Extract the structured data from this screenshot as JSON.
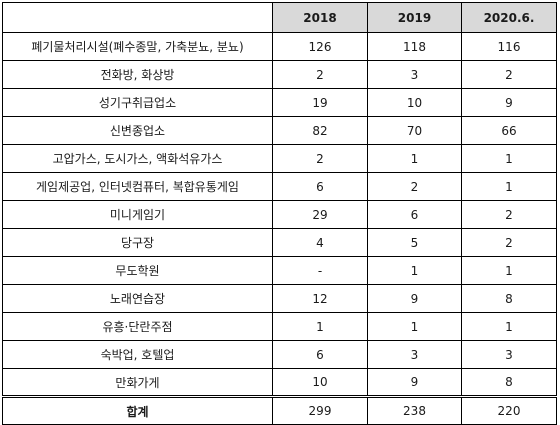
{
  "columns": [
    "",
    "2018",
    "2019",
    "2020.6."
  ],
  "rows": [
    {
      "label": "폐기물처리시설(폐수종말, 가축분뇨, 분뇨)",
      "values": [
        "126",
        "118",
        "116"
      ]
    },
    {
      "label": "전화방, 화상방",
      "values": [
        "2",
        "3",
        "2"
      ]
    },
    {
      "label": "성기구취급업소",
      "values": [
        "19",
        "10",
        "9"
      ]
    },
    {
      "label": "신변종업소",
      "values": [
        "82",
        "70",
        "66"
      ]
    },
    {
      "label": "고압가스, 도시가스, 액화석유가스",
      "values": [
        "2",
        "1",
        "1"
      ]
    },
    {
      "label": "게임제공업, 인터넷컴퓨터, 복합유통게임",
      "values": [
        "6",
        "2",
        "1"
      ]
    },
    {
      "label": "미니게임기",
      "values": [
        "29",
        "6",
        "2"
      ]
    },
    {
      "label": "당구장",
      "values": [
        "4",
        "5",
        "2"
      ]
    },
    {
      "label": "무도학원",
      "values": [
        "-",
        "1",
        "1"
      ]
    },
    {
      "label": "노래연습장",
      "values": [
        "12",
        "9",
        "8"
      ]
    },
    {
      "label": "유흥·단란주점",
      "values": [
        "1",
        "1",
        "1"
      ]
    },
    {
      "label": "숙박업, 호텔업",
      "values": [
        "6",
        "3",
        "3"
      ]
    },
    {
      "label": "만화가게",
      "values": [
        "10",
        "9",
        "8"
      ]
    }
  ],
  "total": {
    "label": "합계",
    "values": [
      "299",
      "238",
      "220"
    ]
  }
}
